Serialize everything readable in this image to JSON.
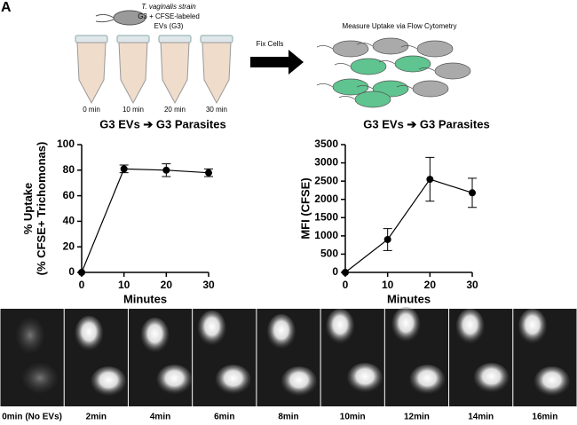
{
  "panel_label": "A",
  "schematic": {
    "strain_lines": [
      "T. vaginalis strain",
      "G3 + CFSE-labeled",
      "EVs (G3)"
    ],
    "tube_labels": [
      "0 min",
      "10 min",
      "20 min",
      "30 min"
    ],
    "arrow_label": "Fix Cells",
    "measure_label": "Measure Uptake via Flow Cytometry"
  },
  "chart_data": [
    {
      "type": "line",
      "title": "G3 EVs ➔ G3 Parasites",
      "y_label": [
        "% Uptake",
        "(% CFSE+ Trichomonas)"
      ],
      "x_label": "Minutes",
      "x": [
        0,
        10,
        20,
        30
      ],
      "values": [
        0,
        81,
        80,
        78
      ],
      "errors": [
        0,
        3,
        5,
        3
      ],
      "color": "#000000",
      "xlim": [
        0,
        30
      ],
      "xticks": [
        0,
        10,
        20,
        30
      ],
      "ylim": [
        0,
        100
      ],
      "yticks": [
        0,
        20,
        40,
        60,
        80,
        100
      ]
    },
    {
      "type": "line",
      "title": "G3 EVs ➔ G3 Parasites",
      "y_label": [
        "MFI (CFSE)"
      ],
      "x_label": "Minutes",
      "x": [
        0,
        10,
        20,
        30
      ],
      "values": [
        0,
        900,
        2550,
        2180
      ],
      "errors": [
        0,
        300,
        600,
        400
      ],
      "color": "#000000",
      "xlim": [
        0,
        30
      ],
      "xticks": [
        0,
        10,
        20,
        30
      ],
      "ylim": [
        0,
        3500
      ],
      "yticks": [
        0,
        500,
        1000,
        1500,
        2000,
        2500,
        3000,
        3500
      ]
    }
  ],
  "micrographs": [
    "0min (No EVs)",
    "2min",
    "4min",
    "6min",
    "8min",
    "10min",
    "12min",
    "14min",
    "16min"
  ]
}
